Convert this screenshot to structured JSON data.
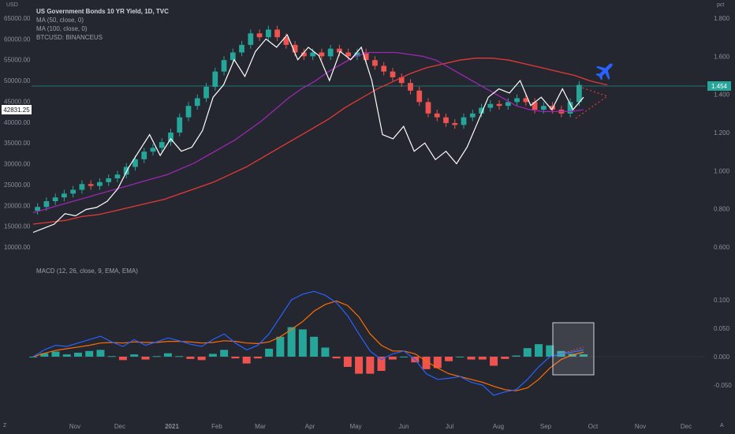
{
  "legend": {
    "symbol_line": "US Government Bonds 10 YR Yield, 1D, TVC",
    "ma50": "MA (50, close, 0)",
    "ma100": "MA (100, close, 0)",
    "btc": "BTCUSD: BINANCEUS",
    "macd": "MACD (12, 26, close, 9, EMA, EMA)"
  },
  "corner": {
    "top_left": "USD",
    "top_right": "pct",
    "bottom_left": "Z",
    "bottom_right": "A"
  },
  "badges": {
    "left_price": "42831.25",
    "right_price": "1.454"
  },
  "colors": {
    "background": "#242730",
    "up_candle": "#26a69a",
    "down_candle": "#ef5350",
    "ma50": "#9c27b0",
    "ma100": "#e53935",
    "btc_line": "#ffffff",
    "macd_line": "#2962ff",
    "signal_line": "#ff6d00",
    "plane": "#2962ff"
  },
  "icons": {
    "plane": "airplane-icon"
  },
  "chart_data": [
    {
      "type": "line",
      "title": "US Government Bonds 10 YR Yield, 1D, TVC",
      "x_ticks": [
        "Nov",
        "Dec",
        "2021",
        "Feb",
        "Mar",
        "Apr",
        "May",
        "Jun",
        "Jul",
        "Aug",
        "Sep",
        "Oct",
        "Nov",
        "Dec"
      ],
      "left_axis_ticks": [
        "65000.00",
        "60000.00",
        "55000.00",
        "50000.00",
        "45000.00",
        "40000.00",
        "35000.00",
        "30000.00",
        "25000.00",
        "20000.00",
        "15000.00",
        "10000.00"
      ],
      "right_axis_ticks": [
        "1.800",
        "1.600",
        "1.400",
        "1.200",
        "1.000",
        "0.800",
        "0.600"
      ],
      "ylim_right": [
        0.6,
        1.8
      ],
      "ylim_left": [
        10000,
        65000
      ],
      "grid": false,
      "series": [
        {
          "name": "US Government Bonds 10 YR Yield",
          "kind": "candles",
          "axis": "right",
          "values": [
            0.81,
            0.84,
            0.86,
            0.88,
            0.9,
            0.93,
            0.92,
            0.94,
            0.96,
            0.98,
            1.02,
            1.06,
            1.1,
            1.12,
            1.15,
            1.2,
            1.28,
            1.34,
            1.38,
            1.44,
            1.52,
            1.58,
            1.62,
            1.66,
            1.72,
            1.7,
            1.74,
            1.7,
            1.66,
            1.62,
            1.6,
            1.62,
            1.6,
            1.64,
            1.62,
            1.6,
            1.62,
            1.58,
            1.55,
            1.52,
            1.49,
            1.46,
            1.42,
            1.36,
            1.3,
            1.28,
            1.25,
            1.24,
            1.28,
            1.3,
            1.33,
            1.35,
            1.34,
            1.36,
            1.38,
            1.36,
            1.32,
            1.34,
            1.32,
            1.3,
            1.36,
            1.45
          ]
        },
        {
          "name": "MA (50, close, 0)",
          "axis": "right",
          "values": [
            0.78,
            0.8,
            0.82,
            0.84,
            0.86,
            0.88,
            0.9,
            0.92,
            0.94,
            0.96,
            0.98,
            1.01,
            1.04,
            1.08,
            1.12,
            1.16,
            1.21,
            1.26,
            1.32,
            1.38,
            1.43,
            1.47,
            1.52,
            1.56,
            1.6,
            1.62,
            1.62,
            1.62,
            1.61,
            1.6,
            1.58,
            1.54,
            1.5,
            1.46,
            1.42,
            1.38,
            1.34,
            1.32,
            1.31,
            1.31,
            1.31,
            1.32
          ]
        },
        {
          "name": "MA (100, close, 0)",
          "axis": "right",
          "values": [
            0.72,
            0.73,
            0.74,
            0.76,
            0.77,
            0.79,
            0.81,
            0.83,
            0.85,
            0.88,
            0.91,
            0.94,
            0.98,
            1.02,
            1.07,
            1.12,
            1.17,
            1.22,
            1.27,
            1.33,
            1.38,
            1.43,
            1.47,
            1.51,
            1.54,
            1.56,
            1.58,
            1.59,
            1.59,
            1.58,
            1.56,
            1.54,
            1.52,
            1.5,
            1.47,
            1.45
          ]
        },
        {
          "name": "BTCUSD: BINANCEUS",
          "axis": "left",
          "values": [
            13500,
            14500,
            15500,
            18000,
            17500,
            19000,
            19500,
            21000,
            24000,
            29000,
            33000,
            37000,
            32000,
            36000,
            33000,
            34000,
            38000,
            46000,
            49000,
            55000,
            51000,
            57000,
            60000,
            58000,
            61000,
            55000,
            58000,
            56000,
            50000,
            57000,
            55000,
            58000,
            50000,
            37000,
            36000,
            39000,
            33000,
            35000,
            31000,
            33000,
            30000,
            34000,
            40000,
            46000,
            48000,
            47000,
            50000,
            44000,
            46000,
            43000,
            48000,
            43000,
            46000
          ]
        }
      ]
    },
    {
      "type": "bar",
      "title": "MACD (12, 26, close, 9, EMA, EMA)",
      "right_axis_ticks": [
        "0.100",
        "0.050",
        "0.000",
        "-0.050"
      ],
      "ylim": [
        -0.075,
        0.125
      ],
      "series": [
        {
          "name": "MACD",
          "kind": "line",
          "values": [
            0.0,
            0.012,
            0.02,
            0.018,
            0.024,
            0.03,
            0.036,
            0.026,
            0.018,
            0.03,
            0.02,
            0.026,
            0.033,
            0.028,
            0.022,
            0.018,
            0.03,
            0.04,
            0.024,
            0.012,
            0.02,
            0.04,
            0.07,
            0.1,
            0.11,
            0.115,
            0.108,
            0.095,
            0.072,
            0.04,
            0.01,
            -0.005,
            0.005,
            0.01,
            -0.005,
            -0.03,
            -0.04,
            -0.038,
            -0.035,
            -0.045,
            -0.05,
            -0.068,
            -0.062,
            -0.058,
            -0.04,
            -0.018,
            0.0,
            0.005,
            0.008,
            0.012
          ]
        },
        {
          "name": "Signal",
          "kind": "line",
          "values": [
            0.0,
            0.006,
            0.011,
            0.014,
            0.017,
            0.02,
            0.024,
            0.025,
            0.024,
            0.026,
            0.025,
            0.025,
            0.027,
            0.027,
            0.026,
            0.024,
            0.025,
            0.028,
            0.027,
            0.024,
            0.023,
            0.026,
            0.035,
            0.048,
            0.062,
            0.08,
            0.092,
            0.098,
            0.09,
            0.07,
            0.04,
            0.02,
            0.01,
            0.01,
            0.005,
            -0.008,
            -0.02,
            -0.03,
            -0.035,
            -0.04,
            -0.045,
            -0.052,
            -0.058,
            -0.06,
            -0.055,
            -0.04,
            -0.02,
            -0.005,
            0.003,
            0.008
          ]
        }
      ]
    }
  ]
}
